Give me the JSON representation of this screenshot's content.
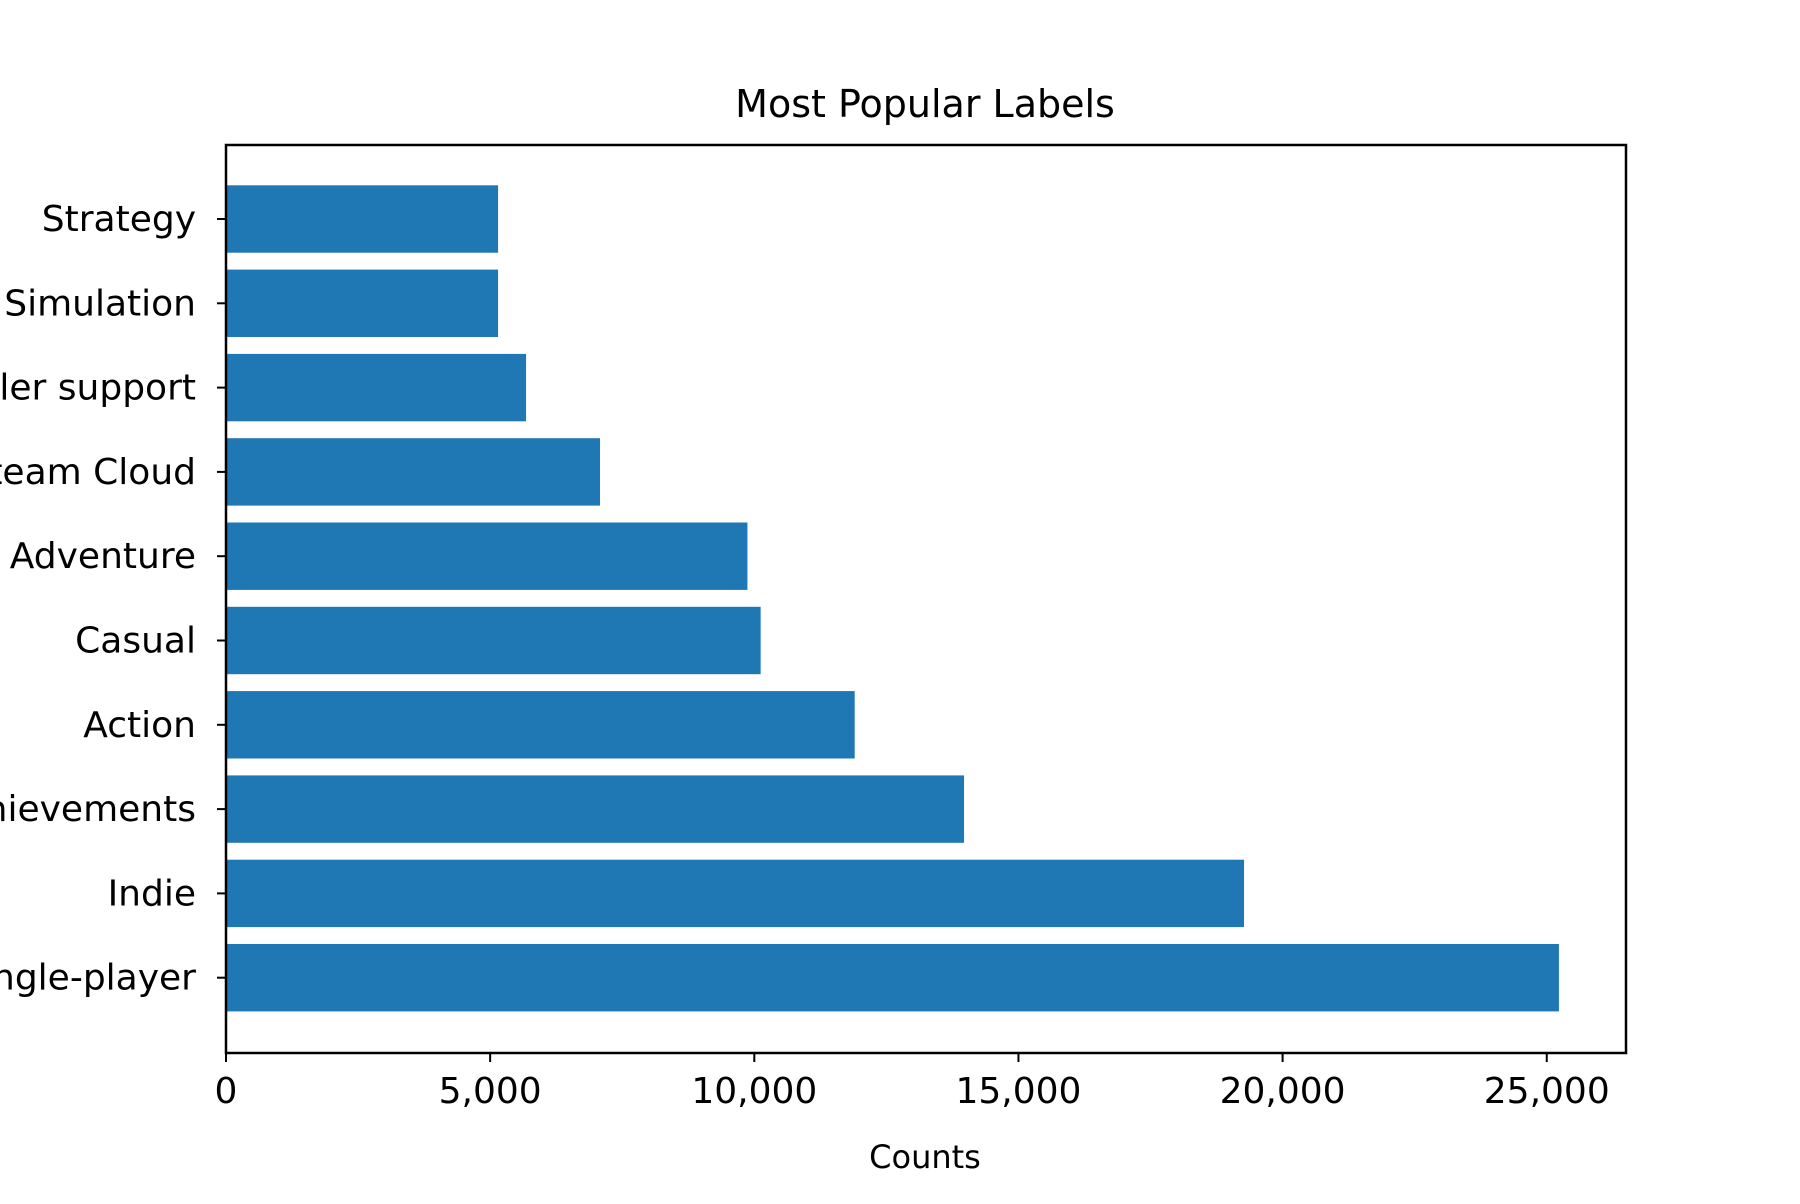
{
  "chart_data": {
    "type": "bar",
    "orientation": "horizontal",
    "title": "Most Popular Labels",
    "xlabel": "Counts",
    "ylabel": "",
    "xlim": [
      0,
      26500
    ],
    "x_ticks": [
      0,
      5000,
      10000,
      15000,
      20000,
      25000
    ],
    "x_tick_labels": [
      "0",
      "5,000",
      "10,000",
      "15,000",
      "20,000",
      "25,000"
    ],
    "categories": [
      "Strategy",
      "Simulation",
      "Full controller support",
      "Steam Cloud",
      "Adventure",
      "Casual",
      "Action",
      "Steam Achievements",
      "Indie",
      "Single-player"
    ],
    "values": [
      5150,
      5150,
      5680,
      7080,
      9870,
      10120,
      11900,
      13970,
      19270,
      25230
    ],
    "bar_color": "#1f77b4",
    "grid": false,
    "legend": "none"
  }
}
